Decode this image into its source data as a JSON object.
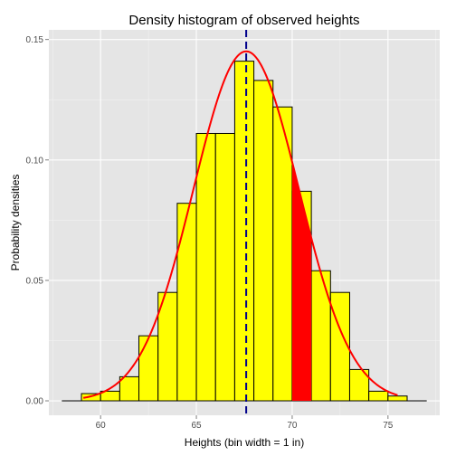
{
  "chart_data": {
    "type": "bar",
    "title": "Density histogram of observed heights",
    "xlabel": "Heights (bin width = 1 in)",
    "ylabel": "Probability densities",
    "xlim": [
      57.3,
      77.7
    ],
    "ylim": [
      -0.006,
      0.154
    ],
    "x_ticks": [
      60,
      65,
      70,
      75
    ],
    "y_ticks": [
      0.0,
      0.05,
      0.1,
      0.15
    ],
    "x_tick_labels": [
      "60",
      "65",
      "70",
      "75"
    ],
    "y_tick_labels": [
      "0.00",
      "0.05",
      "0.10",
      "0.15"
    ],
    "grid": true,
    "bins": [
      {
        "x0": 58,
        "x1": 59,
        "density": 0.0
      },
      {
        "x0": 59,
        "x1": 60,
        "density": 0.003
      },
      {
        "x0": 60,
        "x1": 61,
        "density": 0.004
      },
      {
        "x0": 61,
        "x1": 62,
        "density": 0.01
      },
      {
        "x0": 62,
        "x1": 63,
        "density": 0.027
      },
      {
        "x0": 63,
        "x1": 64,
        "density": 0.045
      },
      {
        "x0": 64,
        "x1": 65,
        "density": 0.082
      },
      {
        "x0": 65,
        "x1": 66,
        "density": 0.111
      },
      {
        "x0": 66,
        "x1": 67,
        "density": 0.111
      },
      {
        "x0": 67,
        "x1": 68,
        "density": 0.141
      },
      {
        "x0": 68,
        "x1": 69,
        "density": 0.133
      },
      {
        "x0": 69,
        "x1": 70,
        "density": 0.122
      },
      {
        "x0": 70,
        "x1": 71,
        "density": 0.087
      },
      {
        "x0": 71,
        "x1": 72,
        "density": 0.054
      },
      {
        "x0": 72,
        "x1": 73,
        "density": 0.045
      },
      {
        "x0": 73,
        "x1": 74,
        "density": 0.013
      },
      {
        "x0": 74,
        "x1": 75,
        "density": 0.004
      },
      {
        "x0": 75,
        "x1": 76,
        "density": 0.002
      },
      {
        "x0": 76,
        "x1": 77,
        "density": 0.0
      }
    ],
    "density_curve": {
      "mean": 67.6,
      "sd": 2.75,
      "from": 59.1,
      "to": 75.5,
      "color": "#ff0000"
    },
    "shaded_region": {
      "from": 70,
      "to": 71,
      "color": "#ff0000"
    },
    "mean_line": {
      "x": 67.6,
      "color": "#00008b",
      "style": "dashed"
    },
    "bar_fill": "#ffff00",
    "bar_stroke": "#000000"
  }
}
